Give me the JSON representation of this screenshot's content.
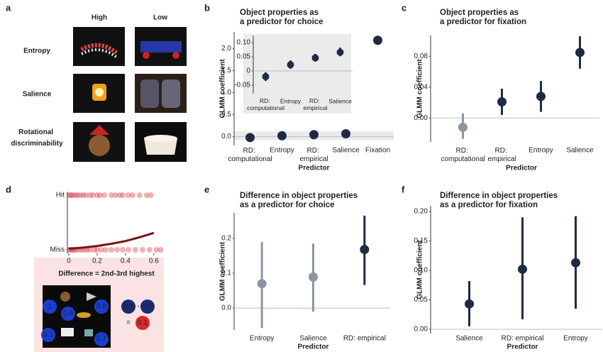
{
  "figure_a": {
    "letter": "a",
    "columns": [
      "High",
      "Low"
    ],
    "rows": [
      "Entropy",
      "Salience",
      "Rotational discriminability"
    ]
  },
  "chart_data": [
    {
      "type": "pointrange",
      "panel": "b",
      "title": [
        "Object properties as",
        "a predictor for choice"
      ],
      "y_label": "GLMM coefficient",
      "x_label": "Predictor",
      "wrap_labels": true,
      "categories": [
        "RD: computational",
        "Entropy",
        "RD: empirical",
        "Salience",
        "Fixation"
      ],
      "values": [
        -0.02,
        0.022,
        0.046,
        0.066,
        2.19
      ],
      "colors": [
        "#1f2a44",
        "#1f2a44",
        "#1f2a44",
        "#1f2a44",
        "#1f2a44"
      ],
      "ylim": [
        -0.2,
        2.38
      ],
      "yticks": [
        {
          "value": 0,
          "label": "0.0"
        },
        0.5,
        {
          "value": 1,
          "label": "1.0"
        },
        1.5,
        {
          "value": 2,
          "label": "2.0"
        }
      ]
    },
    {
      "type": "pointrange",
      "wrap_labels": true,
      "categories": [
        "RD: computational",
        "Entropy",
        "RD: empirical",
        "Salience"
      ],
      "values": [
        -0.02,
        0.022,
        0.046,
        0.066
      ],
      "lower": [
        -0.035,
        0.008,
        0.033,
        0.052
      ],
      "upper": [
        -0.005,
        0.037,
        0.06,
        0.082
      ],
      "colors": [
        "#1f2a44",
        "#1f2a44",
        "#1f2a44",
        "#1f2a44"
      ],
      "ylim": [
        -0.08,
        0.125
      ],
      "yticks": [
        -0.05,
        0,
        0.05,
        {
          "value": 0.1,
          "label": "0.10"
        }
      ]
    },
    {
      "type": "pointrange",
      "panel": "c",
      "title": [
        "Object properties as",
        "a predictor for fixation"
      ],
      "y_label": "GLMM coefficient",
      "x_label": "Predictor",
      "wrap_labels": true,
      "categories": [
        "RD: computational",
        "RD: empirical",
        "Entropy",
        "Salience"
      ],
      "values": [
        -0.012,
        0.021,
        0.028,
        0.085
      ],
      "lower": [
        -0.027,
        0.004,
        0.008,
        0.064
      ],
      "upper": [
        0.006,
        0.038,
        0.048,
        0.106
      ],
      "colors": [
        "#8a96a3",
        "#1f2a44",
        "#1f2a44",
        "#1f2a44"
      ],
      "ylim": [
        -0.031,
        0.107
      ],
      "yticks": [
        {
          "value": 0,
          "label": "0.00"
        },
        0.04,
        0.08
      ]
    },
    {
      "type": "logistic",
      "panel": "d",
      "categories": [
        "Hit",
        "Miss"
      ],
      "hit_x": [
        0,
        0.01,
        0.02,
        0.03,
        0.05,
        0.06,
        0.08,
        0.1,
        0.12,
        0.15,
        0.17,
        0.2,
        0.22,
        0.25,
        0.3,
        0.33,
        0.36,
        0.38,
        0.42,
        0.45,
        0.5,
        0.55,
        0.58
      ],
      "miss_x": [
        0,
        0.01,
        0.02,
        0.03,
        0.04,
        0.05,
        0.07,
        0.09,
        0.11,
        0.13,
        0.15,
        0.18,
        0.2,
        0.23,
        0.26,
        0.3,
        0.34,
        0.38,
        0.42,
        0.47,
        0.52,
        0.57,
        0.62,
        0.65
      ],
      "curve": {
        "x": [
          0,
          0.1,
          0.2,
          0.3,
          0.4,
          0.5,
          0.6
        ],
        "y": [
          0.02,
          0.04,
          0.07,
          0.11,
          0.16,
          0.23,
          0.31
        ]
      },
      "xlim": [
        -0.01,
        0.656
      ],
      "ylim": [
        0,
        1
      ],
      "xticks": [
        0,
        0.2,
        0.4,
        0.6
      ],
      "annotation": "Difference = 2nd-3rd highest",
      "example": {
        "values": [
          "1",
          "0.4",
          "0.8",
          "0.1",
          "0.7"
        ],
        "difference": [
          "0.8",
          "-",
          "0.7",
          "=",
          "0.1"
        ]
      }
    },
    {
      "type": "pointrange",
      "panel": "e",
      "title": [
        "Difference in object properties",
        "as a predictor for choice"
      ],
      "y_label": "GLMM coefficient",
      "x_label": "Predictor",
      "categories": [
        "Entropy",
        "Salience",
        "RD: empirical"
      ],
      "values": [
        0.07,
        0.089,
        0.168
      ],
      "lower": [
        -0.057,
        -0.01,
        0.066
      ],
      "upper": [
        0.19,
        0.185,
        0.265
      ],
      "colors": [
        "#8a96a3",
        "#8a96a3",
        "#1f2a44"
      ],
      "ylim": [
        -0.063,
        0.273
      ],
      "yticks": [
        {
          "value": 0,
          "label": "0.0"
        },
        0.1,
        0.2
      ]
    },
    {
      "type": "pointrange",
      "panel": "f",
      "title": [
        "Difference in object properties",
        "as a predictor for fixation"
      ],
      "y_label": "GLMM coefficient",
      "x_label": "Predictor",
      "categories": [
        "Salience",
        "RD: empirical",
        "Entropy"
      ],
      "values": [
        0.043,
        0.102,
        0.113
      ],
      "lower": [
        0.005,
        0.017,
        0.035
      ],
      "upper": [
        0.082,
        0.19,
        0.192
      ],
      "colors": [
        "#1f2a44",
        "#1f2a44",
        "#1f2a44"
      ],
      "ylim": [
        -0.0072,
        0.2096
      ],
      "yticks": [
        {
          "value": 0,
          "label": "0.00"
        },
        0.05,
        {
          "value": 0.1,
          "label": "0.10"
        },
        0.15,
        {
          "value": 0.2,
          "label": "0.20"
        }
      ]
    }
  ]
}
